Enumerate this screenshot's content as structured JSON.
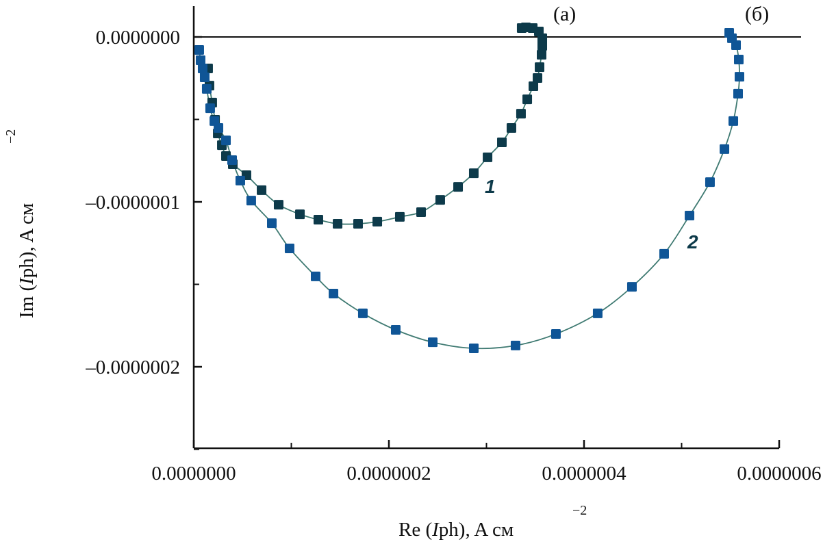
{
  "chart_data": {
    "type": "scatter",
    "title": "",
    "xlabel": {
      "prefix": "Re (",
      "italic": "I",
      "suffix": "ph), A см",
      "exponent": "−2"
    },
    "ylabel": {
      "prefix": "Im (",
      "italic": "I",
      "suffix": "ph), A см",
      "exponent": "−2"
    },
    "xlim": [
      0,
      6e-07
    ],
    "ylim": [
      -2.5e-07,
      1e-08
    ],
    "x_ticks": [
      0,
      2e-07,
      4e-07,
      6e-07
    ],
    "x_tick_labels": [
      "0.0000000",
      "0.0000002",
      "0.0000004",
      "0.0000006"
    ],
    "x_minor_ticks": [
      1e-07,
      3e-07,
      5e-07
    ],
    "y_ticks": [
      0,
      -1e-07,
      -2e-07
    ],
    "y_tick_labels": [
      "0.0000000",
      "–0.0000001",
      "–0.0000002"
    ],
    "y_minor_ticks": [
      -5e-08,
      -1.5e-07,
      -2.5e-07
    ],
    "zero_line": true,
    "grid": false,
    "panel_labels": [
      "(a)",
      "(б)"
    ],
    "series": [
      {
        "name": "1",
        "color": "#0d3a4a",
        "line_color": "#3f7a72",
        "x": [
          1.47e-08,
          1.61e-08,
          1.89e-08,
          2.18e-08,
          2.46e-08,
          2.88e-08,
          3.3e-08,
          4e-08,
          5.4e-08,
          6.95e-08,
          8.7e-08,
          1.088e-07,
          1.277e-07,
          1.474e-07,
          1.684e-07,
          1.881e-07,
          2.112e-07,
          2.33e-07,
          2.526e-07,
          2.709e-07,
          2.87e-07,
          3.011e-07,
          3.158e-07,
          3.256e-07,
          3.354e-07,
          3.418e-07,
          3.481e-07,
          3.523e-07,
          3.544e-07,
          3.565e-07,
          3.572e-07,
          3.572e-07,
          3.537e-07,
          3.474e-07,
          3.404e-07,
          3.361e-07
        ],
        "y": [
          -1.91e-08,
          -2.95e-08,
          -3.98e-08,
          -5.02e-08,
          -5.85e-08,
          -6.56e-08,
          -7.22e-08,
          -7.72e-08,
          -8.38e-08,
          -9.29e-08,
          -1.017e-07,
          -1.075e-07,
          -1.108e-07,
          -1.133e-07,
          -1.133e-07,
          -1.12e-07,
          -1.091e-07,
          -1.062e-07,
          -9.88e-08,
          -9.09e-08,
          -8.26e-08,
          -7.3e-08,
          -6.39e-08,
          -5.52e-08,
          -4.65e-08,
          -3.78e-08,
          -2.99e-08,
          -2.49e-08,
          -1.83e-08,
          -1.08e-08,
          -5.4e-09,
          -8e-10,
          3.3e-09,
          5.4e-09,
          5.8e-09,
          5.4e-09
        ]
      },
      {
        "name": "2",
        "color": "#0f5596",
        "line_color": "#3f7a72",
        "x": [
          5.6e-09,
          7e-09,
          9.1e-09,
          1.12e-08,
          1.33e-08,
          1.68e-08,
          2.11e-08,
          2.53e-08,
          3.3e-08,
          3.93e-08,
          4.77e-08,
          5.89e-08,
          8e-08,
          9.82e-08,
          1.249e-07,
          1.432e-07,
          1.733e-07,
          2.07e-07,
          2.449e-07,
          2.87e-07,
          3.298e-07,
          3.712e-07,
          4.14e-07,
          4.491e-07,
          4.821e-07,
          5.081e-07,
          5.291e-07,
          5.439e-07,
          5.53e-07,
          5.579e-07,
          5.593e-07,
          5.586e-07,
          5.558e-07,
          5.516e-07,
          5.488e-07
        ],
        "y": [
          -7.9e-09,
          -1.41e-08,
          -1.91e-08,
          -2.45e-08,
          -3.15e-08,
          -4.32e-08,
          -5.1e-08,
          -5.52e-08,
          -6.27e-08,
          -7.47e-08,
          -8.71e-08,
          -9.92e-08,
          -1.129e-07,
          -1.282e-07,
          -1.452e-07,
          -1.556e-07,
          -1.676e-07,
          -1.776e-07,
          -1.851e-07,
          -1.888e-07,
          -1.871e-07,
          -1.801e-07,
          -1.676e-07,
          -1.515e-07,
          -1.315e-07,
          -1.083e-07,
          -8.8e-08,
          -6.8e-08,
          -5.1e-08,
          -3.44e-08,
          -2.41e-08,
          -1.37e-08,
          -5e-09,
          -8e-10,
          2.5e-09
        ]
      }
    ]
  }
}
